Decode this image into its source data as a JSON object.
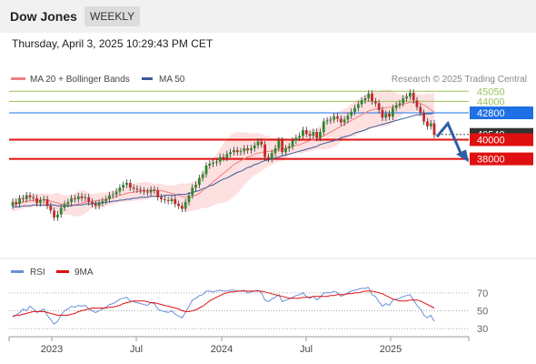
{
  "header": {
    "title": "Dow Jones",
    "timeframe": "WEEKLY",
    "timestamp": "Thursday, April 3, 2025 10:29:43 PM CET",
    "credit": "Research © 2025 Trading Central"
  },
  "colors": {
    "ma20": "#f08080",
    "ma50": "#3d5a99",
    "bb_fill": "#fde0e0",
    "resistance": "#9dc35a",
    "pivot": "#1f6fe5",
    "support": "#e01010",
    "current": "#333333",
    "candle_up": "#2b8a2b",
    "candle_down": "#c62828",
    "rsi": "#6a8fd8",
    "rsi_ma": "#e01010",
    "arrow": "#2f5ea8"
  },
  "chart_data": [
    {
      "type": "candlestick",
      "title": "Dow Jones",
      "legend": [
        {
          "name": "MA 20 + Bollinger Bands",
          "color": "#f08080"
        },
        {
          "name": "MA 50",
          "color": "#3d5a99"
        }
      ],
      "legend_placement": "top-left",
      "x_ticks": [
        "2023",
        "Jul",
        "2024",
        "Jul",
        "2025"
      ],
      "ylim": [
        28000,
        46500
      ],
      "levels": [
        {
          "label": "45050",
          "value": 45050,
          "kind": "resistance"
        },
        {
          "label": "44000",
          "value": 44000,
          "kind": "resistance"
        },
        {
          "label": "42800",
          "value": 42800,
          "kind": "pivot"
        },
        {
          "label": "40549",
          "value": 40549,
          "kind": "current"
        },
        {
          "label": "40000",
          "value": 40000,
          "kind": "support"
        },
        {
          "label": "38000",
          "value": 38000,
          "kind": "support"
        }
      ],
      "close": [
        33500,
        33300,
        33900,
        33800,
        34200,
        34000,
        33900,
        33400,
        33700,
        33800,
        33100,
        32600,
        31900,
        32200,
        32900,
        33300,
        33500,
        33900,
        33800,
        34100,
        33900,
        34000,
        33500,
        33300,
        33100,
        33400,
        33600,
        33800,
        34200,
        34300,
        34600,
        35000,
        35300,
        35500,
        35000,
        34900,
        34800,
        34700,
        34600,
        34500,
        34800,
        34700,
        34000,
        33800,
        33700,
        33600,
        33800,
        33300,
        33100,
        32800,
        33500,
        34200,
        35000,
        35300,
        36000,
        36400,
        37300,
        37500,
        37600,
        37700,
        38200,
        38100,
        38500,
        38700,
        38900,
        38700,
        38800,
        39100,
        38900,
        39100,
        39400,
        39800,
        39500,
        38200,
        38000,
        38600,
        39100,
        39900,
        38700,
        39100,
        39300,
        39900,
        40200,
        40400,
        41000,
        40600,
        40400,
        40800,
        40200,
        40800,
        41900,
        42000,
        42100,
        42400,
        42200,
        41800,
        42100,
        42500,
        42900,
        43300,
        43700,
        44100,
        44300,
        44800,
        44000,
        43800,
        43100,
        42300,
        42700,
        42400,
        43300,
        43600,
        43800,
        44300,
        44500,
        44900,
        44100,
        43400,
        42800,
        41900,
        41400,
        41700,
        40500
      ],
      "ma20": [
        33200,
        33300,
        33400,
        33500,
        33600,
        33600,
        33700,
        33700,
        33700,
        33700,
        33700,
        33600,
        33500,
        33400,
        33300,
        33200,
        33200,
        33200,
        33200,
        33300,
        33400,
        33500,
        33500,
        33600,
        33600,
        33700,
        33700,
        33800,
        33900,
        34000,
        34100,
        34200,
        34300,
        34400,
        34500,
        34500,
        34600,
        34600,
        34700,
        34700,
        34700,
        34700,
        34700,
        34700,
        34600,
        34500,
        34400,
        34300,
        34200,
        34100,
        34000,
        34000,
        34100,
        34200,
        34400,
        34700,
        35000,
        35300,
        35600,
        35900,
        36200,
        36500,
        36800,
        37100,
        37400,
        37600,
        37800,
        38000,
        38200,
        38300,
        38500,
        38600,
        38700,
        38700,
        38800,
        38800,
        38900,
        39000,
        39000,
        39100,
        39200,
        39300,
        39400,
        39500,
        39600,
        39800,
        39900,
        40000,
        40100,
        40200,
        40400,
        40600,
        40800,
        41000,
        41200,
        41400,
        41600,
        41800,
        42000,
        42200,
        42400,
        42600,
        42800,
        43000,
        43100,
        43200,
        43200,
        43300,
        43300,
        43400,
        43400,
        43500,
        43600,
        43700,
        43800,
        43900,
        43900,
        43900,
        43800,
        43600,
        43400,
        43100,
        42900
      ],
      "ma50": [
        33000,
        33000,
        33000,
        33100,
        33100,
        33100,
        33200,
        33200,
        33200,
        33200,
        33200,
        33200,
        33200,
        33100,
        33100,
        33100,
        33100,
        33100,
        33200,
        33200,
        33200,
        33300,
        33300,
        33300,
        33400,
        33400,
        33400,
        33500,
        33500,
        33600,
        33600,
        33700,
        33700,
        33800,
        33800,
        33900,
        33900,
        34000,
        34000,
        34000,
        34100,
        34100,
        34100,
        34100,
        34200,
        34200,
        34200,
        34200,
        34300,
        34300,
        34300,
        34400,
        34500,
        34600,
        34700,
        34900,
        35000,
        35200,
        35300,
        35500,
        35700,
        35900,
        36000,
        36200,
        36400,
        36600,
        36700,
        36900,
        37100,
        37200,
        37400,
        37500,
        37700,
        37800,
        37900,
        38000,
        38100,
        38200,
        38300,
        38400,
        38500,
        38600,
        38700,
        38800,
        38900,
        39000,
        39100,
        39200,
        39300,
        39500,
        39600,
        39700,
        39800,
        39900,
        40000,
        40200,
        40300,
        40400,
        40500,
        40700,
        40800,
        40900,
        41000,
        41200,
        41300,
        41400,
        41500,
        41600,
        41700,
        41800,
        41900,
        42000,
        42100,
        42200,
        42300,
        42400,
        42500,
        42600,
        42600,
        42700,
        42700,
        42700,
        42800
      ]
    },
    {
      "type": "line",
      "title": "RSI",
      "legend": [
        {
          "name": "RSI",
          "color": "#6a8fd8"
        },
        {
          "name": "9MA",
          "color": "#e01010"
        }
      ],
      "legend_placement": "top-left",
      "y_ticks": [
        "70",
        "50",
        "30"
      ],
      "ylim": [
        25,
        80
      ],
      "rsi": [
        43,
        45,
        48,
        52,
        50,
        55,
        52,
        48,
        50,
        52,
        45,
        40,
        35,
        38,
        45,
        50,
        52,
        55,
        54,
        56,
        55,
        56,
        52,
        50,
        48,
        50,
        52,
        54,
        57,
        58,
        60,
        63,
        64,
        65,
        61,
        60,
        59,
        58,
        57,
        56,
        59,
        58,
        52,
        50,
        49,
        48,
        50,
        46,
        44,
        42,
        48,
        55,
        62,
        64,
        67,
        68,
        72,
        72,
        71,
        72,
        73,
        72,
        72,
        73,
        73,
        72,
        72,
        73,
        70,
        71,
        72,
        73,
        70,
        62,
        60,
        63,
        65,
        68,
        60,
        62,
        63,
        65,
        67,
        68,
        70,
        66,
        64,
        66,
        62,
        65,
        70,
        70,
        70,
        72,
        70,
        66,
        68,
        70,
        72,
        73,
        74,
        75,
        75,
        76,
        68,
        66,
        60,
        55,
        58,
        56,
        62,
        63,
        64,
        66,
        67,
        68,
        62,
        56,
        52,
        45,
        42,
        45,
        38
      ],
      "ma9": [
        44,
        45,
        45,
        46,
        47,
        48,
        49,
        49,
        49,
        49,
        48,
        47,
        46,
        45,
        45,
        45,
        45,
        46,
        47,
        49,
        50,
        51,
        52,
        53,
        53,
        53,
        53,
        53,
        54,
        54,
        55,
        56,
        58,
        59,
        60,
        61,
        61,
        61,
        61,
        60,
        59,
        59,
        58,
        57,
        56,
        55,
        54,
        53,
        52,
        50,
        49,
        49,
        50,
        51,
        53,
        55,
        58,
        61,
        63,
        65,
        67,
        69,
        70,
        71,
        71,
        72,
        72,
        72,
        72,
        72,
        72,
        72,
        72,
        71,
        70,
        69,
        68,
        67,
        66,
        65,
        64,
        64,
        64,
        64,
        65,
        65,
        65,
        66,
        66,
        66,
        66,
        66,
        67,
        67,
        68,
        68,
        68,
        69,
        69,
        70,
        70,
        71,
        72,
        72,
        72,
        71,
        70,
        69,
        67,
        65,
        63,
        62,
        61,
        61,
        61,
        62,
        62,
        62,
        61,
        59,
        57,
        55,
        53
      ]
    }
  ]
}
